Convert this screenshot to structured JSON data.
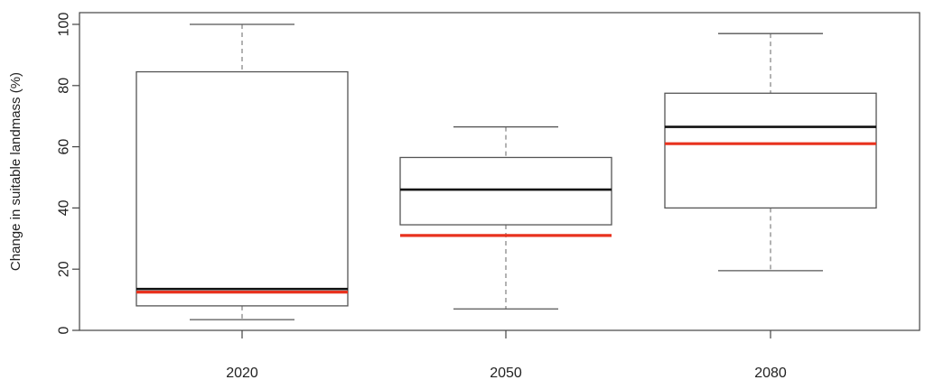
{
  "chart_data": {
    "type": "boxplot",
    "title": "",
    "xlabel": "",
    "ylabel": "Change in suitable landmass (%)",
    "ylim": [
      0,
      100
    ],
    "yticks": [
      0,
      20,
      40,
      60,
      80,
      100
    ],
    "categories": [
      "2020",
      "2050",
      "2080"
    ],
    "boxes": [
      {
        "category": "2020",
        "whisker_low": 3.5,
        "q1": 8,
        "median": 13.5,
        "q3": 84.5,
        "whisker_high": 100,
        "mean": 12.5
      },
      {
        "category": "2050",
        "whisker_low": 7,
        "q1": 34.5,
        "median": 46,
        "q3": 56.5,
        "whisker_high": 66.5,
        "mean": 31
      },
      {
        "category": "2080",
        "whisker_low": 19.5,
        "q1": 40,
        "median": 66.5,
        "q3": 77.5,
        "whisker_high": 97,
        "mean": 61
      }
    ],
    "colors": {
      "median": "#111111",
      "mean": "#e8321e",
      "box": "#555555",
      "whisker": "#888888",
      "axis": "#444444"
    },
    "grid": false,
    "legend": "none"
  }
}
